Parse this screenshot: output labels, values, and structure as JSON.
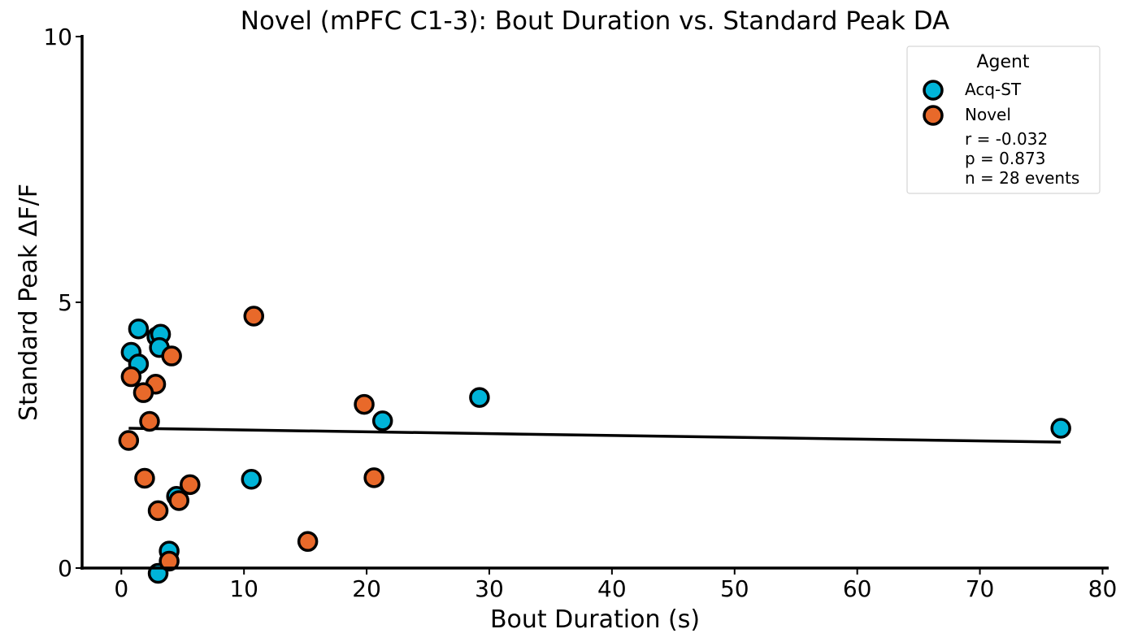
{
  "chart_data": {
    "type": "scatter",
    "title": "Novel (mPFC C1-3): Bout Duration vs. Standard Peak DA",
    "xlabel": "Bout Duration (s)",
    "ylabel": "Standard Peak ΔF/F",
    "xlim": [
      -3.2,
      80.5
    ],
    "ylim": [
      0,
      10
    ],
    "xticks": [
      "0",
      "10",
      "20",
      "30",
      "40",
      "50",
      "60",
      "70",
      "80"
    ],
    "yticks": [
      "0",
      "5",
      "10"
    ],
    "grid": false,
    "legend_placement": "top-right",
    "legend": {
      "title": "Agent",
      "entries": [
        "Acq-ST",
        "Novel"
      ],
      "stats": [
        "r = -0.032",
        "p = 0.873",
        "n = 28 events"
      ]
    },
    "series": [
      {
        "name": "Acq-ST",
        "color": "#00B4D8",
        "points": [
          {
            "x": 1.4,
            "y": 4.5
          },
          {
            "x": 0.8,
            "y": 4.06
          },
          {
            "x": 1.4,
            "y": 3.84
          },
          {
            "x": 2.9,
            "y": 4.35
          },
          {
            "x": 3.2,
            "y": 4.4
          },
          {
            "x": 3.1,
            "y": 4.15
          },
          {
            "x": 29.2,
            "y": 3.21
          },
          {
            "x": 21.3,
            "y": 2.77
          },
          {
            "x": 76.6,
            "y": 2.63
          },
          {
            "x": 10.6,
            "y": 1.67
          },
          {
            "x": 4.5,
            "y": 1.35
          },
          {
            "x": 3.9,
            "y": 0.32
          },
          {
            "x": 3.0,
            "y": -0.1
          }
        ]
      },
      {
        "name": "Novel",
        "color": "#E8692A",
        "points": [
          {
            "x": 10.8,
            "y": 4.74
          },
          {
            "x": 4.1,
            "y": 3.99
          },
          {
            "x": 0.8,
            "y": 3.6
          },
          {
            "x": 2.8,
            "y": 3.46
          },
          {
            "x": 1.8,
            "y": 3.3
          },
          {
            "x": 2.3,
            "y": 2.76
          },
          {
            "x": 0.6,
            "y": 2.4
          },
          {
            "x": 19.8,
            "y": 3.08
          },
          {
            "x": 1.9,
            "y": 1.69
          },
          {
            "x": 20.6,
            "y": 1.7
          },
          {
            "x": 5.6,
            "y": 1.57
          },
          {
            "x": 4.7,
            "y": 1.27
          },
          {
            "x": 3.0,
            "y": 1.08
          },
          {
            "x": 15.2,
            "y": 0.5
          },
          {
            "x": 3.9,
            "y": 0.13
          }
        ]
      }
    ],
    "regression_line": {
      "x": [
        0.6,
        76.6
      ],
      "y": [
        2.63,
        2.37
      ],
      "color": "#000000"
    }
  }
}
